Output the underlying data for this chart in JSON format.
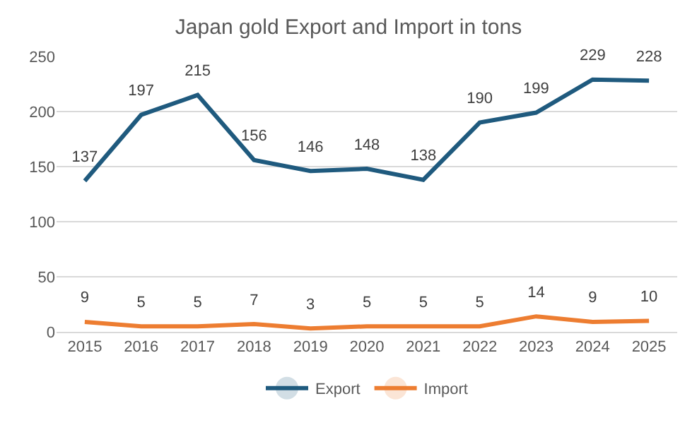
{
  "chart_data": {
    "type": "line",
    "title": "Japan gold Export and Import in tons",
    "categories": [
      "2015",
      "2016",
      "2017",
      "2018",
      "2019",
      "2020",
      "2021",
      "2022",
      "2023",
      "2024",
      "2025"
    ],
    "series": [
      {
        "name": "Export",
        "color": "#1f5a7e",
        "values": [
          137,
          197,
          215,
          156,
          146,
          148,
          138,
          190,
          199,
          229,
          228
        ]
      },
      {
        "name": "Import",
        "color": "#ed7d31",
        "values": [
          9,
          5,
          5,
          7,
          3,
          5,
          5,
          5,
          14,
          9,
          10
        ]
      }
    ],
    "ylim": [
      0,
      250
    ],
    "yticks": [
      0,
      50,
      100,
      150,
      200,
      250
    ],
    "grid": "y",
    "legend": "bottom",
    "data_labels": true,
    "marker": "none",
    "line_style": "solid"
  }
}
